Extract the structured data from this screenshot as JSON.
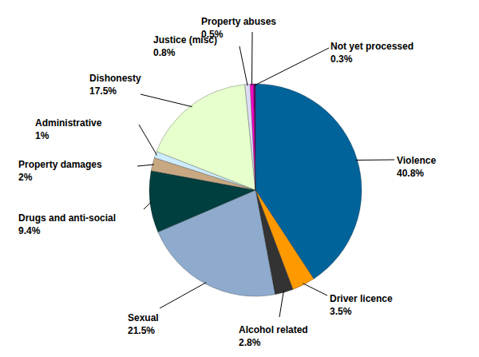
{
  "chart_data": {
    "type": "pie",
    "categories": [
      "Violence",
      "Driver licence",
      "Alcohol related",
      "Sexual",
      "Drugs and anti-social",
      "Property damages",
      "Administrative",
      "Dishonesty",
      "Justice (misc)",
      "Property abuses",
      "Not yet processed"
    ],
    "values": [
      40.8,
      3.5,
      2.8,
      21.5,
      9.4,
      2,
      1,
      17.5,
      0.8,
      0.5,
      0.3
    ],
    "value_labels": [
      "40.8%",
      "3.5%",
      "2.8%",
      "21.5%",
      "9.4%",
      "2%",
      "1%",
      "17.5%",
      "0.8%",
      "0.5%",
      "0.3%"
    ],
    "colors": [
      "#00639a",
      "#ff9900",
      "#333333",
      "#8eaacc",
      "#003f3f",
      "#c8a882",
      "#ccecff",
      "#e6ffcc",
      "#dcdcf4",
      "#ff00cc",
      "#660066"
    ],
    "data_labels": true
  }
}
